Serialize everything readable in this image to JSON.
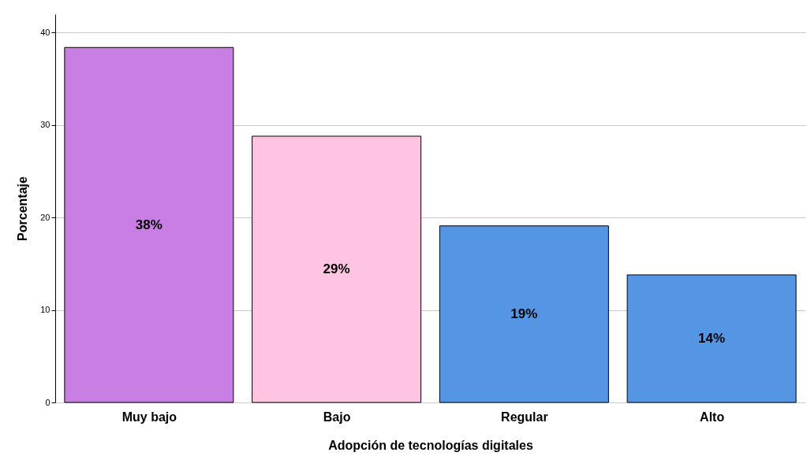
{
  "chart_data": {
    "type": "bar",
    "xlabel": "Adopción de tecnologías digitales",
    "ylabel": "Porcentaje",
    "categories": [
      "Muy bajo",
      "Bajo",
      "Regular",
      "Alto"
    ],
    "values": [
      38.4,
      28.8,
      19.1,
      13.8
    ],
    "colors": [
      "#c97ee4",
      "#fec4e1",
      "#5596e4",
      "#5596e4"
    ],
    "value_labels": [
      "38%",
      "29%",
      "19%",
      "14%"
    ],
    "ylim": [
      0,
      42
    ],
    "yticks": [
      0,
      10,
      20,
      30,
      40
    ],
    "grid": "y"
  }
}
